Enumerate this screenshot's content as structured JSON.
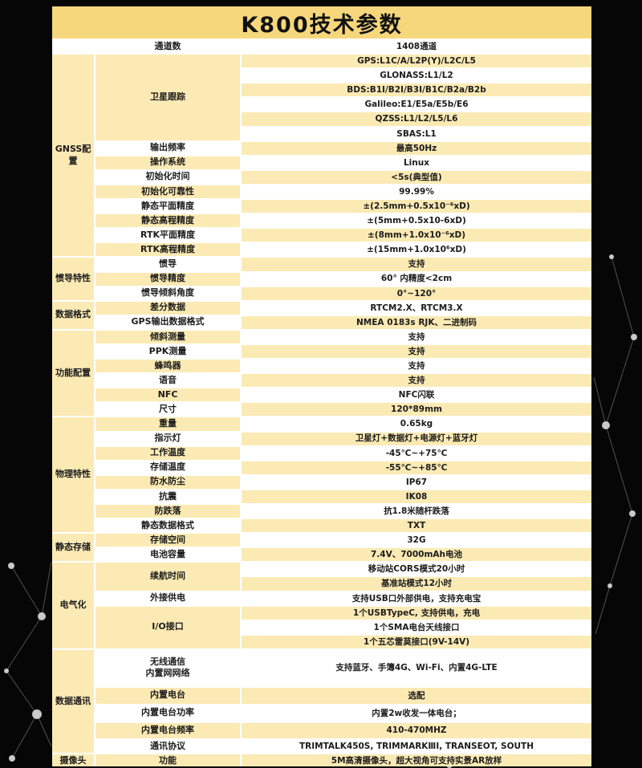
{
  "title": "K800技术参数",
  "colors": {
    "title_bg": "#f7d77b",
    "cell_yellow": "#fbeab4",
    "cell_white": "#ffffff",
    "page_bg": "#060606",
    "text": "#1c1c1c"
  },
  "table": {
    "sections": [
      {
        "category": "",
        "groups": [
          {
            "param": "通道数",
            "values": [
              "1408通道"
            ]
          }
        ]
      },
      {
        "category": "GNSS配置",
        "groups": [
          {
            "param": "卫星跟踪",
            "values": [
              "GPS:L1C/A/L2P(Y)/L2C/L5",
              "GLONASS:L1/L2",
              "BDS:B1I/B2I/B3I/B1C/B2a/B2b",
              "Galileo:E1/E5a/E5b/E6",
              "QZSS:L1/L2/L5/L6",
              "SBAS:L1"
            ]
          },
          {
            "param": "输出频率",
            "values": [
              "最高50Hz"
            ]
          },
          {
            "param": "操作系统",
            "values": [
              "Linux"
            ]
          },
          {
            "param": "初始化时间",
            "values": [
              "<5s(典型值)"
            ]
          },
          {
            "param": "初始化可靠性",
            "values": [
              "99.99%"
            ]
          },
          {
            "param": "静态平面精度",
            "values": [
              "±(2.5mm+0.5x10⁻⁶xD)"
            ]
          },
          {
            "param": "静态高程精度",
            "values": [
              "±(5mm+0.5x10-6xD)"
            ]
          },
          {
            "param": "RTK平面精度",
            "values": [
              "±(8mm+1.0x10⁻⁶xD)"
            ]
          },
          {
            "param": "RTK高程精度",
            "values": [
              "±(15mm+1.0x10⁶xD)"
            ]
          }
        ]
      },
      {
        "category": "惯导特性",
        "groups": [
          {
            "param": "惯导",
            "values": [
              "支持"
            ]
          },
          {
            "param": "惯导精度",
            "values": [
              "60° 内精度<2cm"
            ]
          },
          {
            "param": "惯导倾斜角度",
            "values": [
              "0°~120°"
            ]
          }
        ]
      },
      {
        "category": "数据格式",
        "groups": [
          {
            "param": "差分数据",
            "values": [
              "RTCM2.X、RTCM3.X"
            ]
          },
          {
            "param": "GPS输出数据格式",
            "values": [
              "NMEA 0183s RJK、二进制码"
            ]
          }
        ]
      },
      {
        "category": "功能配置",
        "groups": [
          {
            "param": "倾斜测量",
            "values": [
              "支持"
            ]
          },
          {
            "param": "PPK测量",
            "values": [
              "支持"
            ]
          },
          {
            "param": "蜂鸣器",
            "values": [
              "支持"
            ]
          },
          {
            "param": "语音",
            "values": [
              "支持"
            ]
          },
          {
            "param": "NFC",
            "values": [
              "NFC闪联"
            ]
          },
          {
            "param": "尺寸",
            "values": [
              "120*89mm"
            ]
          }
        ]
      },
      {
        "category": "物理特性",
        "groups": [
          {
            "param": "重量",
            "values": [
              "0.65kg"
            ]
          },
          {
            "param": "指示灯",
            "values": [
              "卫星灯+数据灯+电源灯+蓝牙灯"
            ]
          },
          {
            "param": "工作温度",
            "values": [
              "-45℃~+75℃"
            ]
          },
          {
            "param": "存储温度",
            "values": [
              "-55℃~+85℃"
            ]
          },
          {
            "param": "防水防尘",
            "values": [
              "IP67"
            ]
          },
          {
            "param": "抗震",
            "values": [
              "IK08"
            ]
          },
          {
            "param": "防跌落",
            "values": [
              "抗1.8米随杆跌落"
            ]
          },
          {
            "param": "静态数据格式",
            "values": [
              "TXT"
            ]
          }
        ]
      },
      {
        "category": "静态存储",
        "groups": [
          {
            "param": "存储空间",
            "values": [
              "32G"
            ]
          },
          {
            "param": "电池容量",
            "values": [
              "7.4V、7000mAh电池"
            ]
          }
        ]
      },
      {
        "category": "电气化",
        "groups": [
          {
            "param": "续航时间",
            "values": [
              "移动站CORS模式20小时",
              "基准站模式12小时"
            ]
          },
          {
            "param": "外接供电",
            "values": [
              "支持USB口外部供电，支持充电宝"
            ]
          },
          {
            "param": "I/O接口",
            "values": [
              "1个USBTypeC, 支持供电，充电",
              "1个SMA电台天线接口",
              "1个五芯雷莫接口(9V-14V)"
            ]
          }
        ]
      },
      {
        "category": "数据通讯",
        "groups": [
          {
            "param": "无线通信\n内置网网络",
            "values": [
              "支持蓝牙、手簿4G、Wi-Fi、内置4G-LTE"
            ]
          },
          {
            "param": "内置电台",
            "values": [
              "选配"
            ]
          },
          {
            "param": "内置电台功率",
            "values": [
              "内置2w收发一体电台；"
            ]
          },
          {
            "param": "内置电台频率",
            "values": [
              "410-470MHZ"
            ]
          },
          {
            "param": "通讯协议",
            "values": [
              "TRIMTALK450S, TRIMMARKⅢI, TRANSEOT, SOUTH"
            ]
          }
        ]
      },
      {
        "category": "摄像头",
        "groups": [
          {
            "param": "功能",
            "values": [
              "5M高清摄像头，超大视角可支持实景AR放样"
            ]
          }
        ]
      }
    ]
  }
}
